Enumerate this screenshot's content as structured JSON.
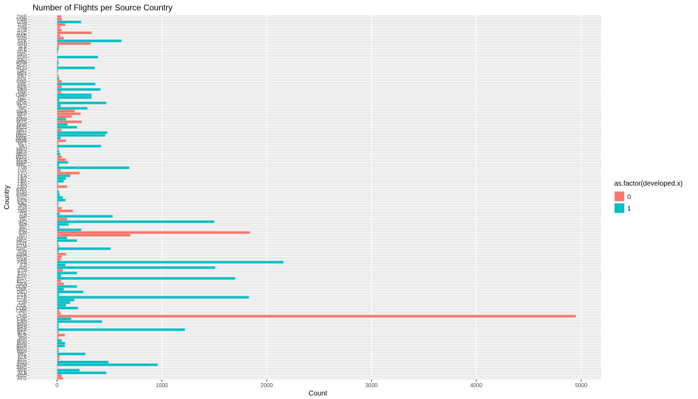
{
  "chart_data": {
    "type": "bar",
    "orientation": "horizontal",
    "title": "Number of Flights per Source Country",
    "x_label": "Count",
    "y_label": "Country",
    "legend_title": "as.factor(developed.x)",
    "categories": [
      "AFG",
      "AGO",
      "ALB",
      "ARE",
      "ARG",
      "ARM",
      "AUS",
      "AUT",
      "AZE",
      "BEL",
      "BEN",
      "BGD",
      "BGR",
      "BHR",
      "BHS",
      "BIH",
      "BLR",
      "BOL",
      "BRA",
      "BRB",
      "BRN",
      "CAN",
      "CHE",
      "CHN",
      "CIV",
      "CMR",
      "COG",
      "COL",
      "CRI",
      "CUB",
      "CYP",
      "CZE",
      "DEU",
      "DNK",
      "DOM",
      "DZA",
      "ECU",
      "EGY",
      "ESP",
      "EST",
      "ETH",
      "FIN",
      "FJI",
      "FRA",
      "GAB",
      "GEO",
      "GHA",
      "GIN",
      "GRC",
      "GTM",
      "GUY",
      "HKG",
      "HRV",
      "HTI",
      "IDN",
      "IND",
      "IRL",
      "IRN",
      "IRQ",
      "ISL",
      "ISR",
      "ITA",
      "JAM",
      "JOR",
      "JPN",
      "KAZ",
      "KEN",
      "KGZ",
      "KHM",
      "KOR",
      "KWT",
      "LAO",
      "LBN",
      "LBR",
      "LBY",
      "LKA",
      "LTU",
      "LUX",
      "LVA",
      "MAC",
      "MAR",
      "MDA",
      "MDG",
      "MDV",
      "MEX",
      "MKD",
      "MLI",
      "MLT",
      "MMR",
      "MNE",
      "MNG",
      "MOZ",
      "MRT",
      "MUS",
      "MWI",
      "MYS",
      "NAM",
      "NCL",
      "NER",
      "NGA",
      "NIC",
      "NLD",
      "NOR",
      "NPL",
      "NZL",
      "OMN",
      "PAK",
      "PAN",
      "PER",
      "PHL",
      "PNG",
      "POL",
      "PRT",
      "PRY",
      "QAT",
      "ROU",
      "RUS",
      "RWA",
      "SAU",
      "SDN",
      "SEN",
      "SGP",
      "SLE",
      "SLV",
      "SRB",
      "SVK",
      "SVN",
      "SWE",
      "SYC",
      "SYR",
      "THA",
      "TUR",
      "USA",
      "VNM",
      "ZWE"
    ],
    "series": [
      {
        "name": "0",
        "color": "#f8766d",
        "values": [
          55,
          45,
          null,
          null,
          null,
          null,
          null,
          20,
          25,
          null,
          null,
          15,
          null,
          null,
          null,
          15,
          75,
          15,
          null,
          null,
          null,
          null,
          null,
          4950,
          35,
          20,
          null,
          null,
          null,
          null,
          null,
          null,
          null,
          null,
          null,
          65,
          35,
          null,
          null,
          null,
          55,
          null,
          null,
          null,
          35,
          45,
          85,
          null,
          null,
          20,
          null,
          null,
          null,
          700,
          1840,
          null,
          null,
          null,
          null,
          95,
          null,
          null,
          150,
          45,
          null,
          15,
          null,
          null,
          null,
          null,
          10,
          95,
          null,
          null,
          null,
          null,
          215,
          35,
          null,
          null,
          null,
          85,
          45,
          null,
          null,
          15,
          null,
          15,
          85,
          null,
          null,
          null,
          40,
          null,
          null,
          235,
          null,
          140,
          225,
          170,
          null,
          null,
          null,
          null,
          null,
          null,
          40,
          null,
          45,
          null,
          45,
          null,
          15,
          null,
          null,
          null,
          null,
          null,
          10,
          null,
          5,
          10,
          null,
          20,
          320,
          null,
          65,
          30,
          330,
          45,
          30,
          80,
          null,
          45,
          40
        ]
      },
      {
        "name": "1",
        "color": "#00bfc4",
        "values": [
          null,
          null,
          470,
          215,
          5,
          960,
          490,
          null,
          null,
          270,
          15,
          null,
          75,
          75,
          45,
          null,
          null,
          null,
          1220,
          15,
          15,
          430,
          135,
          null,
          null,
          null,
          200,
          85,
          125,
          165,
          1830,
          20,
          250,
          65,
          190,
          null,
          null,
          1700,
          40,
          190,
          null,
          1510,
          80,
          2160,
          null,
          null,
          null,
          15,
          510,
          null,
          10,
          190,
          95,
          null,
          null,
          230,
          25,
          110,
          1500,
          null,
          530,
          25,
          null,
          null,
          10,
          null,
          80,
          55,
          25,
          20,
          null,
          null,
          10,
          65,
          85,
          125,
          null,
          null,
          690,
          20,
          105,
          null,
          null,
          30,
          20,
          null,
          420,
          null,
          null,
          35,
          460,
          480,
          null,
          190,
          100,
          null,
          85,
          null,
          null,
          null,
          290,
          35,
          470,
          20,
          330,
          330,
          null,
          415,
          null,
          365,
          null,
          20,
          null,
          5,
          10,
          360,
          10,
          15,
          null,
          390,
          null,
          null,
          15,
          null,
          null,
          615,
          null,
          null,
          null,
          null,
          null,
          null,
          230,
          null,
          null
        ]
      }
    ],
    "xlim": [
      -260,
      5190
    ],
    "xticks": [
      0,
      1000,
      2000,
      3000,
      4000,
      5000
    ],
    "grid": true
  }
}
